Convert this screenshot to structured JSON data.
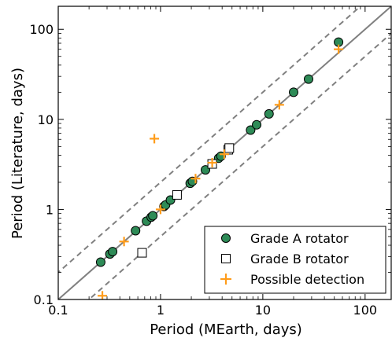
{
  "chart_data": {
    "type": "scatter",
    "xlabel": "Period (MEarth, days)",
    "ylabel": "Period (Literature, days)",
    "xscale": "log",
    "yscale": "log",
    "xlim": [
      0.1,
      180
    ],
    "ylim": [
      0.1,
      180
    ],
    "xticks": [
      {
        "value": 0.1,
        "label": "0.1"
      },
      {
        "value": 1,
        "label": "1"
      },
      {
        "value": 10,
        "label": "10"
      },
      {
        "value": 100,
        "label": "100"
      }
    ],
    "yticks": [
      {
        "value": 0.1,
        "label": "0.1"
      },
      {
        "value": 1,
        "label": "1"
      },
      {
        "value": 10,
        "label": "10"
      },
      {
        "value": 100,
        "label": "100"
      }
    ],
    "legend_position": "bottom-right",
    "colors": {
      "grade_a_fill": "#2e8b57",
      "grade_b_fill": "#ffffff",
      "possible": "#ff9c1a",
      "reference_line": "#808080"
    },
    "reference_lines": [
      {
        "style": "solid",
        "relation": "y = x"
      },
      {
        "style": "dashed",
        "relation": "y = 2x"
      },
      {
        "style": "dashed",
        "relation": "y = x / 2"
      }
    ],
    "series": [
      {
        "name": "Grade A rotator",
        "marker": "circle",
        "points": [
          [
            0.26,
            0.26
          ],
          [
            0.32,
            0.32
          ],
          [
            0.34,
            0.34
          ],
          [
            0.57,
            0.58
          ],
          [
            0.73,
            0.74
          ],
          [
            0.81,
            0.82
          ],
          [
            0.84,
            0.85
          ],
          [
            1.08,
            1.08
          ],
          [
            1.12,
            1.12
          ],
          [
            1.25,
            1.27
          ],
          [
            1.95,
            1.95
          ],
          [
            2.05,
            2.05
          ],
          [
            2.75,
            2.75
          ],
          [
            3.7,
            3.7
          ],
          [
            3.9,
            3.9
          ],
          [
            7.6,
            7.6
          ],
          [
            8.7,
            8.7
          ],
          [
            11.5,
            11.5
          ],
          [
            20,
            20
          ],
          [
            28,
            28
          ],
          [
            55,
            72
          ]
        ]
      },
      {
        "name": "Grade B rotator",
        "marker": "square",
        "points": [
          [
            0.66,
            0.33
          ],
          [
            1.45,
            1.45
          ],
          [
            3.2,
            3.2
          ],
          [
            4.6,
            4.6
          ],
          [
            4.7,
            4.8
          ]
        ]
      },
      {
        "name": "Possible detection",
        "marker": "plus",
        "points": [
          [
            0.27,
            0.11
          ],
          [
            0.44,
            0.44
          ],
          [
            0.87,
            6.1
          ],
          [
            1.0,
            1.0
          ],
          [
            2.2,
            2.2
          ],
          [
            3.2,
            3.3
          ],
          [
            4.2,
            4.1
          ],
          [
            14.5,
            14.5
          ],
          [
            55,
            60
          ]
        ]
      }
    ]
  }
}
